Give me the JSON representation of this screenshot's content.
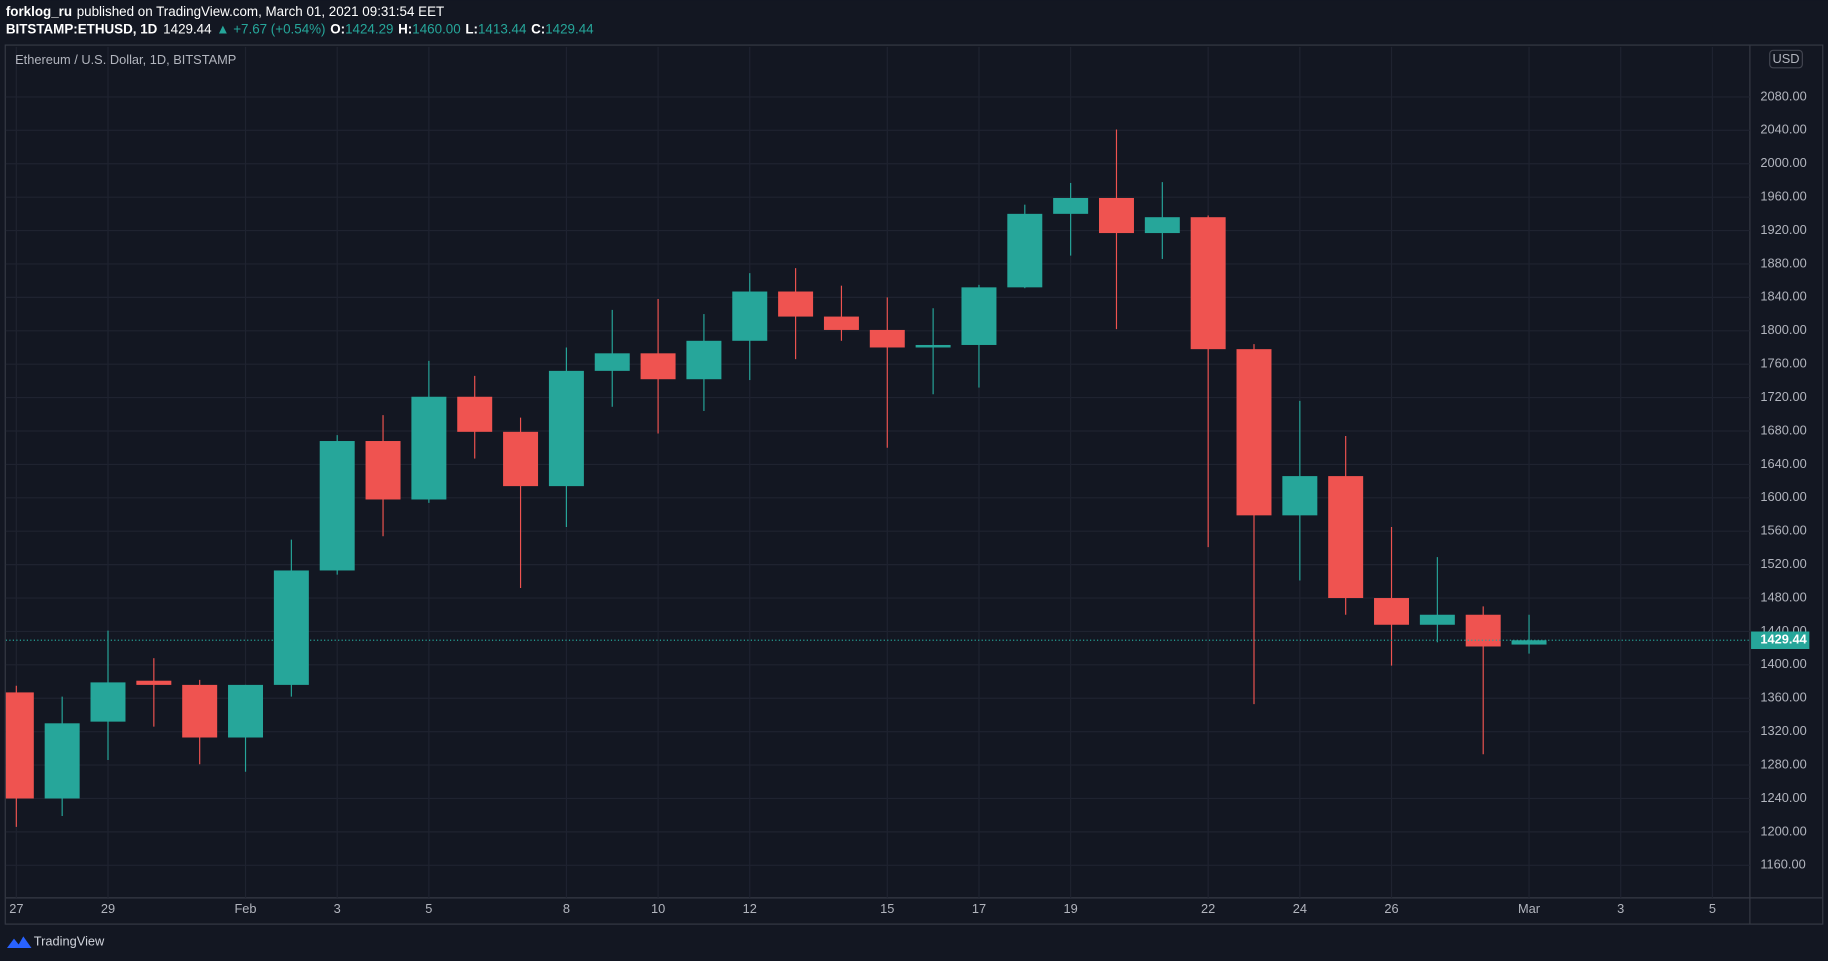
{
  "header": {
    "author": "forklog_ru",
    "published": "published on TradingView.com, March 01, 2021 09:31:54 EET",
    "symbol": "BITSTAMP:ETHUSD, 1D",
    "last": "1429.44",
    "change": "▲ +7.67 (+0.54%)",
    "ohlc": [
      {
        "label": "O:",
        "value": "1424.29"
      },
      {
        "label": "H:",
        "value": "1460.00"
      },
      {
        "label": "L:",
        "value": "1413.44"
      },
      {
        "label": "C:",
        "value": "1429.44"
      }
    ]
  },
  "chart_data": {
    "type": "candlestick",
    "title": "Ethereum / U.S. Dollar, 1D, BITSTAMP",
    "currency": "USD",
    "categories": [
      "27",
      null,
      "29",
      null,
      null,
      "Feb",
      null,
      "3",
      null,
      "5",
      null,
      null,
      "8",
      null,
      "10",
      null,
      "12",
      null,
      null,
      "15",
      null,
      "17",
      null,
      "19",
      null,
      null,
      "22",
      null,
      "24",
      null,
      "26",
      null,
      null,
      "Mar",
      null,
      "3",
      null,
      "5"
    ],
    "open": [
      1367,
      1240,
      1332,
      1381,
      1376,
      1313,
      1376,
      1513,
      1668,
      1598,
      1721,
      1679,
      1614,
      1752,
      1773,
      1742,
      1788,
      1847,
      1817,
      1801,
      1780,
      1783,
      1852,
      1940,
      1959,
      1917,
      1936,
      1778,
      1579,
      1626,
      1480,
      1448,
      1460,
      1424.29,
      null,
      null,
      null,
      null
    ],
    "high": [
      1375,
      1362,
      1441,
      1408,
      1382,
      1376,
      1550,
      1675,
      1699,
      1764,
      1746,
      1696,
      1780,
      1825,
      1838,
      1820,
      1869,
      1875,
      1854,
      1840,
      1827,
      1855,
      1951,
      1977,
      2041,
      1978,
      1938,
      1784,
      1716,
      1674,
      1565,
      1529,
      1470,
      1460.0,
      null,
      null,
      null,
      null
    ],
    "low": [
      1206,
      1219,
      1286,
      1326,
      1281,
      1272,
      1362,
      1508,
      1554,
      1594,
      1647,
      1492,
      1565,
      1709,
      1677,
      1704,
      1741,
      1766,
      1788,
      1660,
      1724,
      1732,
      1851,
      1890,
      1802,
      1886,
      1541,
      1353,
      1501,
      1460,
      1399,
      1427,
      1293,
      1413.44,
      null,
      null,
      null,
      null
    ],
    "close": [
      1240,
      1330,
      1379,
      1376,
      1313,
      1376,
      1513,
      1668,
      1598,
      1721,
      1679,
      1614,
      1752,
      1773,
      1742,
      1788,
      1847,
      1817,
      1801,
      1780,
      1783,
      1852,
      1940,
      1959,
      1917,
      1936,
      1778,
      1579,
      1626,
      1480,
      1448,
      1460,
      1422,
      1429.44,
      null,
      null,
      null,
      null
    ],
    "last_price_label": "1429.44",
    "up_color": "#26a69a",
    "down_color": "#ef5350",
    "ylim": [
      1121,
      2140
    ],
    "yticks": [
      {
        "value": 1160,
        "label": "1160.00"
      },
      {
        "value": 1200,
        "label": "1200.00"
      },
      {
        "value": 1240,
        "label": "1240.00"
      },
      {
        "value": 1280,
        "label": "1280.00"
      },
      {
        "value": 1320,
        "label": "1320.00"
      },
      {
        "value": 1360,
        "label": "1360.00"
      },
      {
        "value": 1400,
        "label": "1400.00"
      },
      {
        "value": 1440,
        "label": "1440.00"
      },
      {
        "value": 1480,
        "label": "1480.00"
      },
      {
        "value": 1520,
        "label": "1520.00"
      },
      {
        "value": 1560,
        "label": "1560.00"
      },
      {
        "value": 1600,
        "label": "1600.00"
      },
      {
        "value": 1640,
        "label": "1640.00"
      },
      {
        "value": 1680,
        "label": "1680.00"
      },
      {
        "value": 1720,
        "label": "1720.00"
      },
      {
        "value": 1760,
        "label": "1760.00"
      },
      {
        "value": 1800,
        "label": "1800.00"
      },
      {
        "value": 1840,
        "label": "1840.00"
      },
      {
        "value": 1880,
        "label": "1880.00"
      },
      {
        "value": 1920,
        "label": "1920.00"
      },
      {
        "value": 1960,
        "label": "1960.00"
      },
      {
        "value": 2000,
        "label": "2000.00"
      },
      {
        "value": 2040,
        "label": "2040.00"
      },
      {
        "value": 2080,
        "label": "2080.00"
      }
    ],
    "grid": true
  },
  "footer": {
    "brand": "TradingView"
  }
}
